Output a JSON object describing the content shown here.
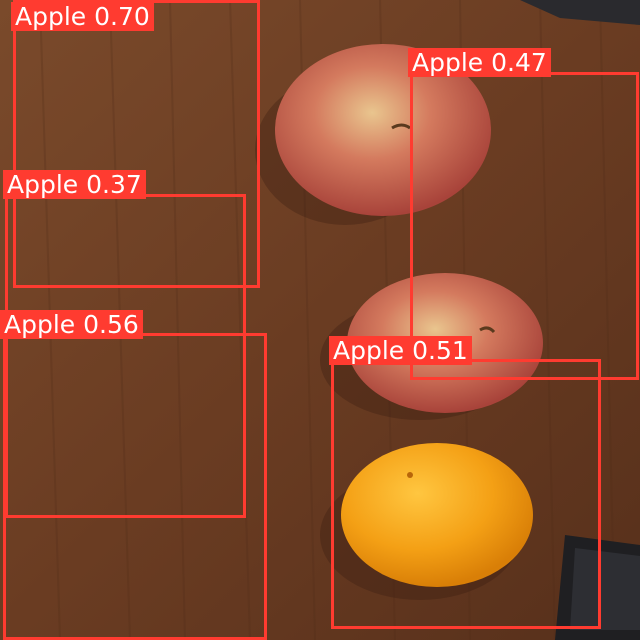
{
  "scene": {
    "description_colors": {
      "table": "#6b3f24",
      "apple": "#c9564a",
      "orange": "#f5a51c",
      "box": "#ff3b30"
    }
  },
  "detections": [
    {
      "label": "Apple 0.70"
    },
    {
      "label": "Apple 0.47"
    },
    {
      "label": "Apple 0.37"
    },
    {
      "label": "Apple 0.56"
    },
    {
      "label": "Apple 0.51"
    }
  ]
}
